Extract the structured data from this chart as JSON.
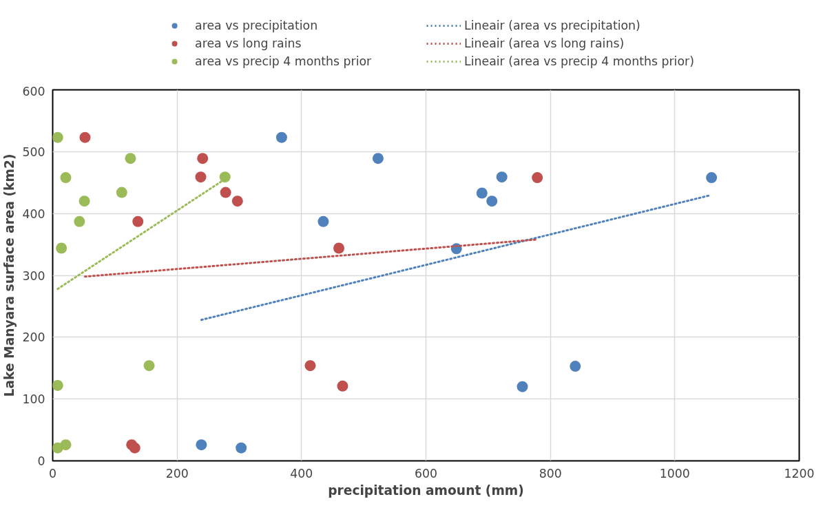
{
  "chart_data": {
    "type": "scatter",
    "xlabel": "precipitation amount (mm)",
    "ylabel": "Lake Manyara surface area (km2)",
    "xlim": [
      0,
      1200
    ],
    "ylim": [
      0,
      600
    ],
    "xticks": [
      0,
      200,
      400,
      600,
      800,
      1000,
      1200
    ],
    "yticks": [
      0,
      100,
      200,
      300,
      400,
      500,
      600
    ],
    "grid": true,
    "legend": "top",
    "series": [
      {
        "name": "area vs precipitation",
        "marker": "circle",
        "color": "#4f81bd",
        "x": [
          368,
          523,
          435,
          239,
          303,
          722,
          690,
          706,
          649,
          1059,
          840,
          755
        ],
        "values": [
          523,
          489,
          387,
          26,
          21,
          459,
          433,
          420,
          343,
          458,
          153,
          120
        ]
      },
      {
        "name": "area vs long rains",
        "marker": "circle",
        "color": "#c0504d",
        "x": [
          52,
          241,
          238,
          278,
          297,
          137,
          460,
          414,
          466,
          127,
          132,
          779
        ],
        "values": [
          523,
          489,
          459,
          434,
          420,
          387,
          344,
          154,
          121,
          26,
          21,
          458
        ]
      },
      {
        "name": "area vs precip 4 months prior",
        "marker": "circle",
        "color": "#9bbb59",
        "x": [
          8,
          125,
          21,
          111,
          51,
          43,
          14,
          277,
          155,
          8,
          8,
          21
        ],
        "values": [
          523,
          489,
          458,
          434,
          420,
          387,
          344,
          459,
          154,
          122,
          21,
          26
        ]
      },
      {
        "name": "Lineair (area vs precipitation)",
        "type": "line",
        "line_style": "dotted",
        "color": "#4f81bd",
        "x": [
          239,
          1055
        ],
        "values": [
          228,
          429
        ]
      },
      {
        "name": "Lineair (area vs long rains)",
        "type": "line",
        "line_style": "dotted",
        "color": "#c0504d",
        "x": [
          52,
          779
        ],
        "values": [
          298,
          358
        ]
      },
      {
        "name": "Lineair (area vs precip 4 months prior)",
        "type": "line",
        "line_style": "dotted",
        "color": "#9bbb59",
        "x": [
          8,
          273
        ],
        "values": [
          278,
          453
        ]
      }
    ]
  }
}
